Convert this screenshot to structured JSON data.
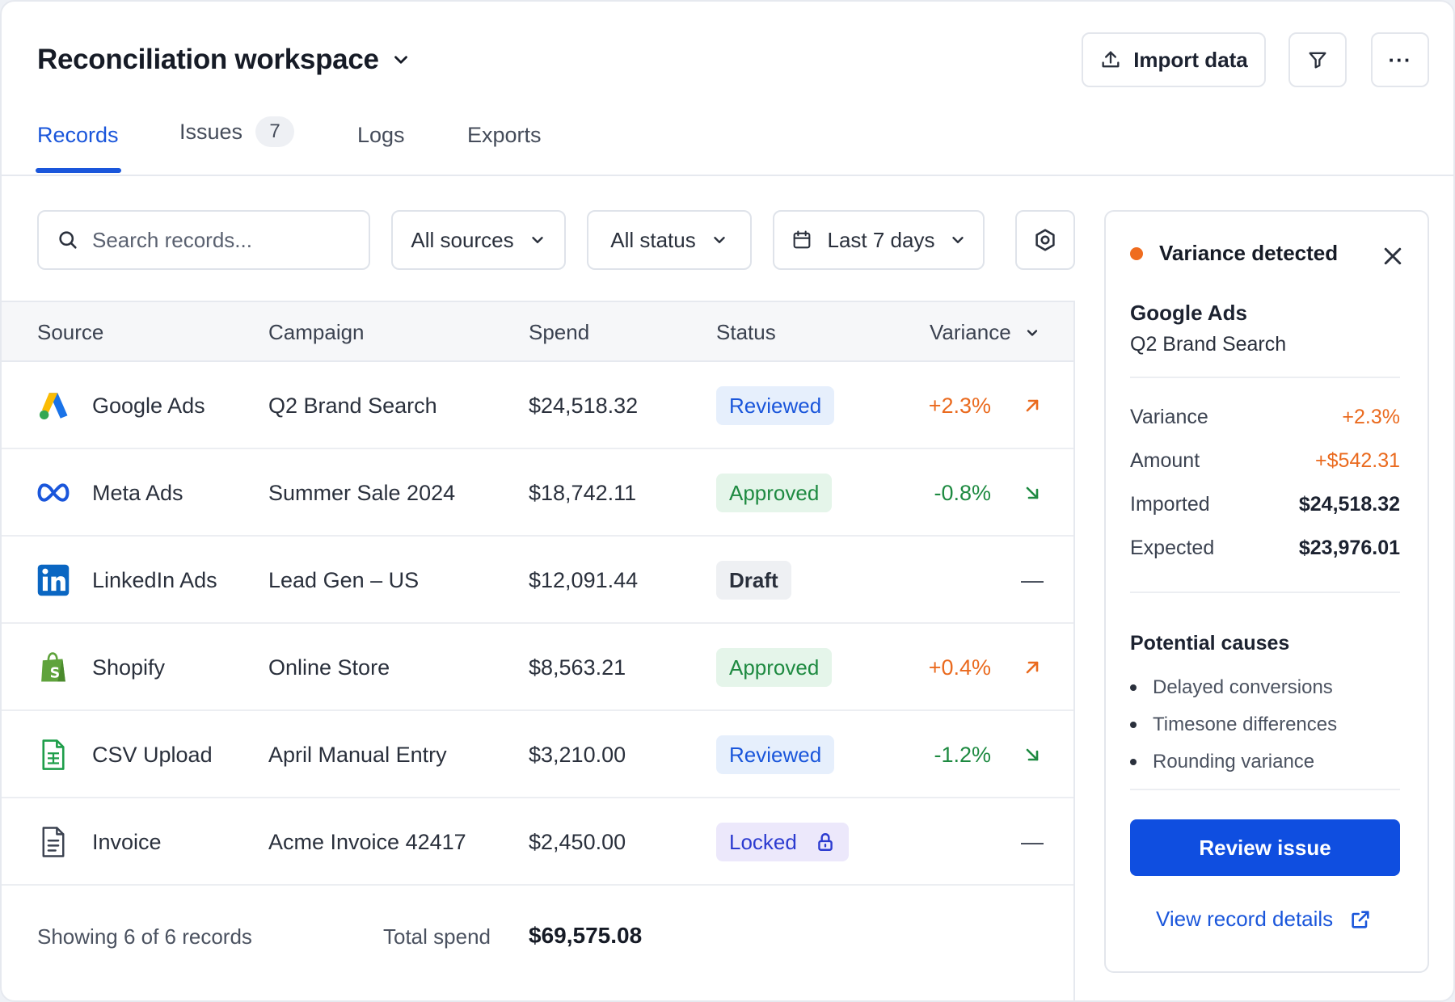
{
  "header": {
    "workspace_title": "Reconciliation workspace",
    "import_label": "Import data",
    "more_glyph": "···"
  },
  "tabs": [
    {
      "label": "Records",
      "active": true
    },
    {
      "label": "Issues",
      "count": "7"
    },
    {
      "label": "Logs"
    },
    {
      "label": "Exports"
    }
  ],
  "filters": {
    "search_placeholder": "Search records...",
    "sources": "All sources",
    "status": "All status",
    "date_range": "Last 7 days"
  },
  "table": {
    "columns": [
      "Source",
      "Campaign",
      "Spend",
      "Status",
      "Variance"
    ],
    "rows": [
      {
        "source": "Google Ads",
        "icon": "google-ads-icon",
        "campaign": "Q2 Brand Search",
        "spend": "$24,518.32",
        "status": "Reviewed",
        "variance": "+2.3%",
        "trend": "up"
      },
      {
        "source": "Meta Ads",
        "icon": "meta-icon",
        "campaign": "Summer Sale 2024",
        "spend": "$18,742.11",
        "status": "Approved",
        "variance": "-0.8%",
        "trend": "down"
      },
      {
        "source": "LinkedIn Ads",
        "icon": "linkedin-icon",
        "campaign": "Lead Gen – US",
        "spend": "$12,091.44",
        "status": "Draft",
        "variance": "",
        "trend": "none",
        "dash": "—"
      },
      {
        "source": "Shopify",
        "icon": "shopify-icon",
        "campaign": "Online Store",
        "spend": "$8,563.21",
        "status": "Approved",
        "variance": "+0.4%",
        "trend": "up"
      },
      {
        "source": "CSV Upload",
        "icon": "csv-file-icon",
        "campaign": "April Manual Entry",
        "spend": "$3,210.00",
        "status": "Reviewed",
        "variance": "-1.2%",
        "trend": "down"
      },
      {
        "source": "Invoice",
        "icon": "invoice-file-icon",
        "campaign": "Acme Invoice 42417",
        "spend": "$2,450.00",
        "status": "Locked",
        "variance": "",
        "trend": "none",
        "dash": "—"
      }
    ],
    "footer": {
      "showing": "Showing 6 of 6 records",
      "total_label": "Total spend",
      "total_value": "$69,575.08"
    }
  },
  "panel": {
    "title": "Variance detected",
    "source": "Google Ads",
    "campaign": "Q2 Brand Search",
    "details": [
      {
        "key": "Variance",
        "value": "+2.3%"
      },
      {
        "key": "Amount",
        "value": "+$542.31"
      },
      {
        "key": "Imported",
        "value": "$24,518.32"
      },
      {
        "key": "Expected",
        "value": "$23,976.01"
      }
    ],
    "causes_title": "Potential causes",
    "causes": [
      "Delayed conversions",
      "Timesone differences",
      "Rounding variance"
    ],
    "review_label": "Review issue",
    "view_label": "View record details"
  },
  "colors": {
    "accent": "#1a56db",
    "positive_variance": "#ea6a1e",
    "negative_variance": "#1e8a41",
    "alert_dot": "#ef6c1f"
  }
}
